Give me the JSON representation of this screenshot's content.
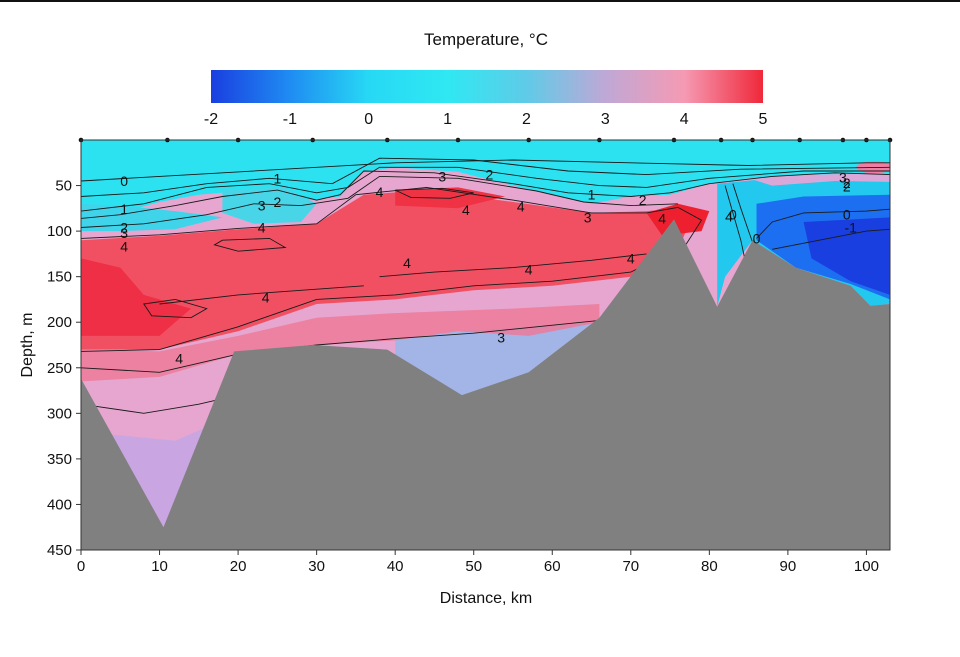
{
  "chart_data": {
    "type": "heatmap",
    "title": "Temperature, °C",
    "xlabel": "Distance, km",
    "ylabel": "Depth, m",
    "xlim": [
      0,
      103
    ],
    "ylim": [
      450,
      0
    ],
    "xticks": [
      0,
      10,
      20,
      30,
      40,
      50,
      60,
      70,
      80,
      90,
      100
    ],
    "yticks": [
      50,
      100,
      150,
      200,
      250,
      300,
      350,
      400,
      450
    ],
    "colorbar": {
      "min": -2,
      "max": 5,
      "ticks": [
        -2,
        -1,
        0,
        1,
        2,
        3,
        4,
        5
      ],
      "stops": [
        {
          "value": -2,
          "color": "#1a3fe0"
        },
        {
          "value": -1,
          "color": "#1f8cf2"
        },
        {
          "value": 0,
          "color": "#27d8f4"
        },
        {
          "value": 1,
          "color": "#2fe8f2"
        },
        {
          "value": 2,
          "color": "#5fcbe8"
        },
        {
          "value": 3,
          "color": "#bfa8d6"
        },
        {
          "value": 4,
          "color": "#f59ab3"
        },
        {
          "value": 5,
          "color": "#f0283a"
        }
      ]
    },
    "stations_km": [
      0,
      11,
      20,
      29.5,
      39,
      48,
      57,
      66,
      75.5,
      81.5,
      85.5,
      91.5,
      97,
      100,
      103
    ],
    "bathymetry": [
      {
        "x": 0,
        "depth": 262
      },
      {
        "x": 10.5,
        "depth": 425
      },
      {
        "x": 19.5,
        "depth": 232
      },
      {
        "x": 29.5,
        "depth": 225
      },
      {
        "x": 39,
        "depth": 230
      },
      {
        "x": 48.5,
        "depth": 280
      },
      {
        "x": 57,
        "depth": 255
      },
      {
        "x": 66,
        "depth": 195
      },
      {
        "x": 75.5,
        "depth": 87
      },
      {
        "x": 81,
        "depth": 183
      },
      {
        "x": 85.5,
        "depth": 110
      },
      {
        "x": 91,
        "depth": 140
      },
      {
        "x": 98,
        "depth": 160
      },
      {
        "x": 100.5,
        "depth": 182
      },
      {
        "x": 103,
        "depth": 180
      }
    ],
    "contour_labels": [
      {
        "x": 5.5,
        "depth": 45,
        "text": "0"
      },
      {
        "x": 25,
        "depth": 42,
        "text": "1"
      },
      {
        "x": 46,
        "depth": 40,
        "text": "3"
      },
      {
        "x": 52,
        "depth": 38,
        "text": "2"
      },
      {
        "x": 38,
        "depth": 57,
        "text": "4"
      },
      {
        "x": 5.5,
        "depth": 76,
        "text": "1"
      },
      {
        "x": 5.5,
        "depth": 96,
        "text": "2"
      },
      {
        "x": 5.5,
        "depth": 102,
        "text": "3"
      },
      {
        "x": 5.5,
        "depth": 117,
        "text": "4"
      },
      {
        "x": 23,
        "depth": 72,
        "text": "3"
      },
      {
        "x": 25,
        "depth": 68,
        "text": "2"
      },
      {
        "x": 23,
        "depth": 96,
        "text": "4"
      },
      {
        "x": 49,
        "depth": 77,
        "text": "4"
      },
      {
        "x": 56,
        "depth": 73,
        "text": "4"
      },
      {
        "x": 65,
        "depth": 60,
        "text": "1"
      },
      {
        "x": 64.5,
        "depth": 85,
        "text": "3"
      },
      {
        "x": 71.5,
        "depth": 66,
        "text": "2"
      },
      {
        "x": 74,
        "depth": 86,
        "text": "4"
      },
      {
        "x": 83,
        "depth": 82,
        "text": "0"
      },
      {
        "x": 82.5,
        "depth": 84,
        "text": "4"
      },
      {
        "x": 41.5,
        "depth": 135,
        "text": "4"
      },
      {
        "x": 57,
        "depth": 142,
        "text": "4"
      },
      {
        "x": 70,
        "depth": 130,
        "text": "4"
      },
      {
        "x": 23.5,
        "depth": 173,
        "text": "4"
      },
      {
        "x": 12.5,
        "depth": 240,
        "text": "4"
      },
      {
        "x": 53.5,
        "depth": 217,
        "text": "3"
      },
      {
        "x": 86,
        "depth": 108,
        "text": "0"
      },
      {
        "x": 97.5,
        "depth": 82,
        "text": "0"
      },
      {
        "x": 98,
        "depth": 96,
        "text": "-1"
      },
      {
        "x": 97,
        "depth": 41,
        "text": "3"
      },
      {
        "x": 97.5,
        "depth": 51,
        "text": "2"
      },
      {
        "x": 97.5,
        "depth": 47,
        "text": "2"
      }
    ],
    "grid": false
  }
}
